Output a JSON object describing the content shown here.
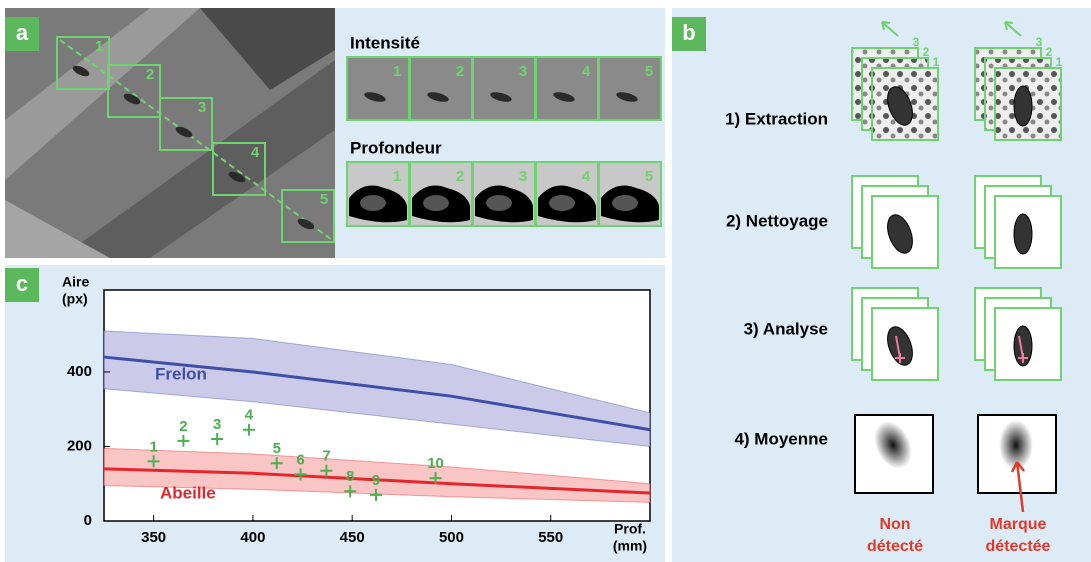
{
  "panel_a": {
    "label": "a",
    "frame_numbers": [
      "1",
      "2",
      "3",
      "4",
      "5"
    ],
    "intensity": {
      "title": "Intensité",
      "numbers": [
        "1",
        "2",
        "3",
        "4",
        "5"
      ]
    },
    "depth": {
      "title": "Profondeur",
      "numbers": [
        "1",
        "2",
        "3",
        "4",
        "5"
      ]
    }
  },
  "panel_b": {
    "label": "b",
    "steps": [
      "1) Extraction",
      "2) Nettoyage",
      "3) Analyse",
      "4) Moyenne"
    ],
    "stack_numbers": [
      "3",
      "2",
      "1"
    ],
    "results": [
      [
        "Non",
        "détecté"
      ],
      [
        "Marque",
        "détectée"
      ]
    ]
  },
  "chart_data": {
    "type": "line",
    "panel_label": "c",
    "y_label": [
      "Aire",
      "(px)"
    ],
    "x_label": [
      "Prof.",
      "(mm)"
    ],
    "xlim": [
      325,
      600
    ],
    "ylim": [
      0,
      620
    ],
    "xticks": [
      350,
      400,
      450,
      500,
      550
    ],
    "yticks": [
      0,
      200,
      400
    ],
    "series": [
      {
        "name": "Frelon",
        "color": "#3f4fa8",
        "band_color": "#b9b9e2",
        "x": [
          325,
          400,
          500,
          600
        ],
        "values": [
          440,
          400,
          335,
          245
        ],
        "upper": [
          510,
          490,
          420,
          290
        ],
        "lower": [
          355,
          320,
          260,
          200
        ]
      },
      {
        "name": "Abeille",
        "color": "#e5262c",
        "band_color": "#f7b1b1",
        "x": [
          325,
          400,
          500,
          600
        ],
        "values": [
          140,
          128,
          100,
          75
        ],
        "upper": [
          195,
          180,
          145,
          100
        ],
        "lower": [
          95,
          85,
          65,
          50
        ]
      }
    ],
    "points": {
      "color": "#4cb050",
      "labels": [
        "1",
        "2",
        "3",
        "4",
        "5",
        "6",
        "7",
        "8",
        "9",
        "10"
      ],
      "x": [
        350,
        365,
        382,
        398,
        412,
        424,
        437,
        449,
        462,
        492
      ],
      "values": [
        160,
        215,
        220,
        245,
        155,
        125,
        135,
        80,
        70,
        115
      ]
    }
  }
}
